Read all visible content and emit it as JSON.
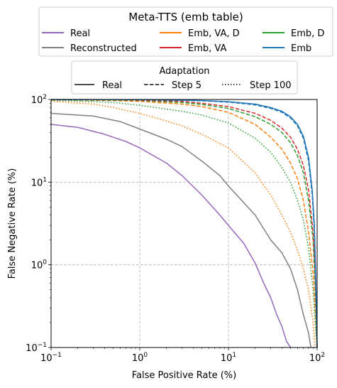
{
  "chart_data": {
    "type": "line",
    "xlabel": "False Positive Rate (%)",
    "ylabel": "False Negative Rate (%)",
    "xscale": "log",
    "yscale": "log",
    "xlim": [
      0.1,
      100
    ],
    "ylim": [
      0.1,
      100
    ],
    "xticks": [
      0.1,
      1,
      10,
      100
    ],
    "yticks": [
      0.1,
      1,
      10,
      100
    ],
    "xtick_labels": [
      "10−1",
      "10⁰",
      "10¹",
      "10²"
    ],
    "ytick_labels": [
      "10−1",
      "10⁰",
      "10¹",
      "10²"
    ],
    "grid": true,
    "legend_main": {
      "title": "Meta-TTS (emb table)",
      "placement": "top, above plot",
      "entries": [
        {
          "label": "Real",
          "color": "#9467bd"
        },
        {
          "label": "Emb, VA, D",
          "color": "#ff7f0e"
        },
        {
          "label": "Emb, D",
          "color": "#2ca02c"
        },
        {
          "label": "Reconstructed",
          "color": "#7f7f7f"
        },
        {
          "label": "Emb, VA",
          "color": "#d62728"
        },
        {
          "label": "Emb",
          "color": "#1f77b4"
        }
      ]
    },
    "legend_adaptation": {
      "title": "Adaptation",
      "placement": "top, below main legend",
      "entries": [
        {
          "label": "Real",
          "style": "solid"
        },
        {
          "label": "Step 5",
          "style": "dashed"
        },
        {
          "label": "Step 100",
          "style": "dotted"
        }
      ]
    },
    "series": [
      {
        "color": "#9467bd",
        "style": "solid",
        "points": [
          [
            0.1,
            50
          ],
          [
            0.2,
            46
          ],
          [
            0.4,
            38
          ],
          [
            0.7,
            31
          ],
          [
            1,
            26
          ],
          [
            2,
            17
          ],
          [
            3,
            12
          ],
          [
            5,
            7
          ],
          [
            8,
            4
          ],
          [
            10,
            3
          ],
          [
            15,
            1.8
          ],
          [
            20,
            1.05
          ],
          [
            25,
            0.6
          ],
          [
            30,
            0.4
          ],
          [
            35,
            0.25
          ],
          [
            40,
            0.18
          ],
          [
            45,
            0.12
          ],
          [
            50,
            0.1
          ]
        ]
      },
      {
        "color": "#7f7f7f",
        "style": "solid",
        "points": [
          [
            0.1,
            68
          ],
          [
            0.3,
            63
          ],
          [
            0.6,
            54
          ],
          [
            1,
            44
          ],
          [
            2,
            33
          ],
          [
            3,
            27
          ],
          [
            5,
            18
          ],
          [
            8,
            12
          ],
          [
            10,
            9
          ],
          [
            20,
            4
          ],
          [
            30,
            2
          ],
          [
            40,
            1.4
          ],
          [
            50,
            0.9
          ],
          [
            60,
            0.5
          ],
          [
            70,
            0.25
          ],
          [
            80,
            0.15
          ],
          [
            85,
            0.1
          ]
        ]
      },
      {
        "color": "#ff7f0e",
        "style": "dashed",
        "points": [
          [
            0.1,
            99
          ],
          [
            0.5,
            97
          ],
          [
            1,
            95
          ],
          [
            3,
            88
          ],
          [
            5,
            82
          ],
          [
            10,
            70
          ],
          [
            20,
            50
          ],
          [
            30,
            35
          ],
          [
            40,
            25
          ],
          [
            50,
            17
          ],
          [
            60,
            11
          ],
          [
            70,
            6
          ],
          [
            80,
            2.5
          ],
          [
            90,
            0.8
          ],
          [
            95,
            0.3
          ],
          [
            100,
            0.1
          ]
        ]
      },
      {
        "color": "#ff7f0e",
        "style": "dotted",
        "points": [
          [
            0.1,
            95
          ],
          [
            0.3,
            88
          ],
          [
            0.5,
            80
          ],
          [
            1,
            68
          ],
          [
            2,
            55
          ],
          [
            3,
            48
          ],
          [
            5,
            38
          ],
          [
            10,
            26
          ],
          [
            20,
            13
          ],
          [
            30,
            7
          ],
          [
            40,
            4
          ],
          [
            50,
            2.5
          ],
          [
            60,
            1.5
          ],
          [
            70,
            0.9
          ],
          [
            80,
            0.5
          ],
          [
            90,
            0.2
          ],
          [
            95,
            0.1
          ]
        ]
      },
      {
        "color": "#2ca02c",
        "style": "dashed",
        "points": [
          [
            0.1,
            99
          ],
          [
            0.5,
            98
          ],
          [
            1,
            97
          ],
          [
            3,
            92
          ],
          [
            5,
            87
          ],
          [
            10,
            78
          ],
          [
            20,
            62
          ],
          [
            30,
            50
          ],
          [
            40,
            40
          ],
          [
            50,
            30
          ],
          [
            60,
            21
          ],
          [
            70,
            13
          ],
          [
            80,
            6
          ],
          [
            90,
            2
          ],
          [
            95,
            0.6
          ],
          [
            100,
            0.1
          ]
        ]
      },
      {
        "color": "#2ca02c",
        "style": "dotted",
        "points": [
          [
            0.1,
            98
          ],
          [
            0.5,
            92
          ],
          [
            1,
            85
          ],
          [
            3,
            72
          ],
          [
            5,
            65
          ],
          [
            10,
            52
          ],
          [
            20,
            34
          ],
          [
            30,
            23
          ],
          [
            40,
            15
          ],
          [
            50,
            10
          ],
          [
            60,
            6
          ],
          [
            70,
            3.5
          ],
          [
            80,
            1.6
          ],
          [
            90,
            0.5
          ],
          [
            95,
            0.2
          ],
          [
            100,
            0.1
          ]
        ]
      },
      {
        "color": "#d62728",
        "style": "dashed",
        "points": [
          [
            0.1,
            99.5
          ],
          [
            0.5,
            99
          ],
          [
            1,
            98
          ],
          [
            3,
            95
          ],
          [
            5,
            90
          ],
          [
            10,
            82
          ],
          [
            20,
            68
          ],
          [
            30,
            56
          ],
          [
            40,
            45
          ],
          [
            50,
            35
          ],
          [
            60,
            25
          ],
          [
            70,
            16
          ],
          [
            80,
            8
          ],
          [
            90,
            2.5
          ],
          [
            95,
            0.8
          ],
          [
            100,
            0.1
          ]
        ]
      },
      {
        "color": "#1f77b4",
        "style": "solid",
        "points": [
          [
            0.1,
            99.8
          ],
          [
            1,
            99.5
          ],
          [
            3,
            98
          ],
          [
            5,
            97
          ],
          [
            10,
            94
          ],
          [
            20,
            88
          ],
          [
            30,
            80
          ],
          [
            40,
            72
          ],
          [
            50,
            62
          ],
          [
            60,
            50
          ],
          [
            70,
            36
          ],
          [
            80,
            20
          ],
          [
            88,
            8
          ],
          [
            93,
            3
          ],
          [
            97,
            0.6
          ],
          [
            100,
            0.1
          ]
        ]
      },
      {
        "color": "#1f77b4",
        "style": "dashed",
        "points": [
          [
            0.1,
            99.8
          ],
          [
            1,
            99.4
          ],
          [
            3,
            98
          ],
          [
            5,
            96.5
          ],
          [
            10,
            93
          ],
          [
            20,
            86
          ],
          [
            30,
            78
          ],
          [
            40,
            70
          ],
          [
            50,
            60
          ],
          [
            60,
            48
          ],
          [
            70,
            34
          ],
          [
            80,
            18
          ],
          [
            88,
            7
          ],
          [
            93,
            2.5
          ],
          [
            97,
            0.5
          ],
          [
            100,
            0.1
          ]
        ]
      }
    ]
  }
}
